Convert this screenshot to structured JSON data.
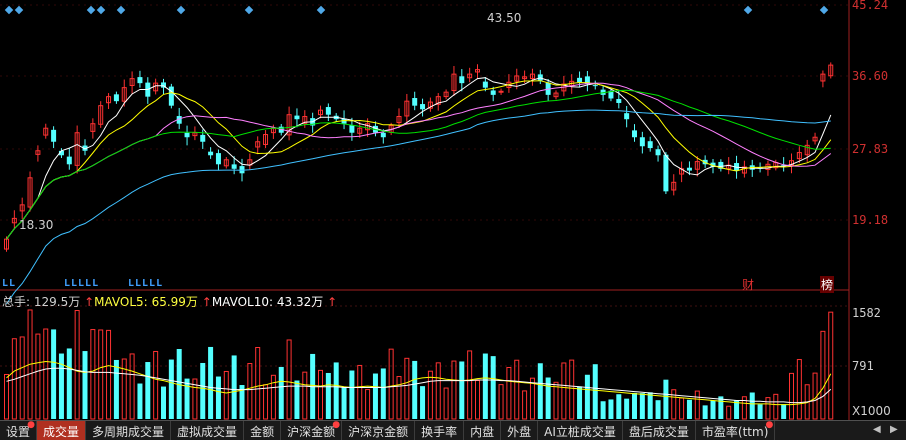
{
  "price_axis": {
    "ticks": [
      "45.24",
      "36.60",
      "27.83",
      "19.18"
    ],
    "min": 14.0,
    "max": 45.5
  },
  "volume_axis": {
    "ticks": [
      "1582",
      "791"
    ],
    "unit_label": "X1000",
    "max": 1650
  },
  "annotations": {
    "high_label": "43.50",
    "low_label": "18.30"
  },
  "markers": {
    "cai": "财",
    "bang": "榜"
  },
  "l_labels": [
    "LL",
    "LLLLL",
    "LLLLL"
  ],
  "volume_info": {
    "total_label": "总手:",
    "total_value": "129.5万",
    "mavol5_label": "MAVOL5:",
    "mavol5_value": "65.99万",
    "mavol10_label": "MAVOL10:",
    "mavol10_value": "43.32万"
  },
  "tabs": [
    {
      "label": "设置",
      "active": false,
      "dot": true
    },
    {
      "label": "成交量",
      "active": true,
      "dot": false
    },
    {
      "label": "多周期成交量",
      "active": false,
      "dot": false
    },
    {
      "label": "虚拟成交量",
      "active": false,
      "dot": false
    },
    {
      "label": "金额",
      "active": false,
      "dot": false
    },
    {
      "label": "沪深金额",
      "active": false,
      "dot": true
    },
    {
      "label": "沪深京金额",
      "active": false,
      "dot": false
    },
    {
      "label": "换手率",
      "active": false,
      "dot": false
    },
    {
      "label": "内盘",
      "active": false,
      "dot": false
    },
    {
      "label": "外盘",
      "active": false,
      "dot": false
    },
    {
      "label": "AI立桩成交量",
      "active": false,
      "dot": false
    },
    {
      "label": "盘后成交量",
      "active": false,
      "dot": false
    },
    {
      "label": "市盈率(ttm)",
      "active": false,
      "dot": true
    }
  ],
  "colors": {
    "up": "#ff3232",
    "down": "#54ffff",
    "ma5": "#ffffff",
    "ma10": "#ffff00",
    "ma20": "#ff80ff",
    "ma30": "#00e000",
    "ma60": "#40c0ff"
  },
  "chart_data": {
    "type": "candlestick",
    "close": [
      19.2,
      21.5,
      23,
      26,
      29,
      31.5,
      30,
      28.5,
      27.5,
      31,
      29,
      32,
      34,
      35,
      34.5,
      36,
      37,
      36.5,
      35,
      36.5,
      36,
      34,
      32,
      30.5,
      31,
      30,
      28.5,
      27.5,
      28,
      27,
      26.5,
      28,
      30,
      30.8,
      31.5,
      31,
      33,
      32.5,
      32.8,
      31.8,
      33.5,
      33,
      32.5,
      32,
      31,
      31.5,
      32,
      31,
      30.5,
      31.8,
      32.8,
      34.5,
      34,
      33.6,
      34.4,
      35,
      35.5,
      37.5,
      36.5,
      37.5,
      38,
      36,
      35.2,
      35.6,
      36.6,
      37.3,
      37.2,
      37.5,
      36.8,
      35.2,
      35.4,
      36.4,
      36.7,
      36.6,
      36.4,
      36.2,
      35.2,
      34.8,
      34.3,
      32.5,
      30.5,
      29.5,
      29.3,
      28.5,
      24.5,
      25.5,
      27,
      26.8,
      27.8,
      27.5,
      27.2,
      27,
      27.4,
      26.8,
      27.2,
      26.9,
      27,
      27.5,
      27.7,
      27.3,
      27.9,
      28.8,
      29.6,
      30.5,
      37.5,
      38.5
    ],
    "mavol5": [
      60,
      70,
      75,
      80,
      82,
      84,
      83,
      80,
      75,
      70,
      68,
      70,
      75,
      78,
      76,
      73,
      70,
      66,
      62,
      58,
      56,
      53,
      50,
      48,
      46,
      45,
      43,
      40,
      38,
      40,
      42,
      45,
      48,
      50,
      53,
      55,
      54,
      52,
      50,
      49,
      48,
      50,
      49,
      47,
      46,
      47,
      48,
      47,
      46,
      48,
      50,
      53,
      58,
      60,
      61,
      60,
      58,
      57,
      56,
      57,
      59,
      60,
      59,
      57,
      55,
      54,
      53,
      52,
      50,
      48,
      47,
      46,
      45,
      44,
      43,
      42,
      41,
      40,
      39,
      38,
      37,
      36,
      35,
      34,
      33,
      32,
      31,
      30,
      29,
      28,
      27,
      26,
      25,
      24,
      23,
      22,
      22,
      22,
      21,
      21,
      21,
      22,
      24,
      30,
      45,
      65.99
    ],
    "mavol10": [
      55,
      58,
      62,
      66,
      70,
      73,
      74,
      74,
      73,
      71,
      69,
      68,
      68,
      68,
      67,
      66,
      65,
      64,
      62,
      60,
      58,
      56,
      54,
      52,
      50,
      48,
      46,
      45,
      44,
      43,
      43,
      43,
      44,
      45,
      46,
      47,
      48,
      48,
      48,
      47,
      47,
      47,
      47,
      46,
      46,
      46,
      46,
      46,
      46,
      47,
      48,
      49,
      51,
      53,
      55,
      56,
      56,
      56,
      56,
      56,
      57,
      57,
      57,
      56,
      56,
      55,
      54,
      53,
      52,
      51,
      50,
      49,
      48,
      47,
      46,
      45,
      44,
      43,
      42,
      41,
      40,
      39,
      38,
      37,
      36,
      35,
      34,
      33,
      32,
      31,
      30,
      29,
      28,
      27,
      27,
      26,
      26,
      25,
      25,
      25,
      24,
      24,
      25,
      27,
      33,
      43.32
    ]
  }
}
